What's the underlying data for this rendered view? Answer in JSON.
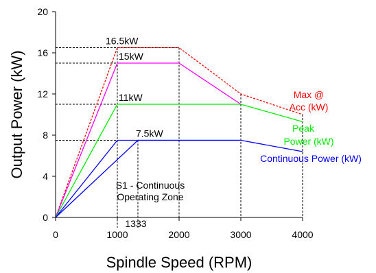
{
  "chart_data": {
    "type": "line",
    "xlabel": "Spindle Speed (RPM)",
    "ylabel": "Output Power (kW)",
    "xlim": [
      0,
      4000
    ],
    "ylim": [
      0,
      20
    ],
    "xticks": [
      "0",
      "1000",
      "2000",
      "3000",
      "4000"
    ],
    "yticks": [
      "0",
      "4",
      "8",
      "12",
      "16",
      "20"
    ],
    "grid": false,
    "series": [
      {
        "name": "Max @ Acc (kW)",
        "color": "#ff0000",
        "dashed": true,
        "x": [
          0,
          1000,
          2000,
          3000,
          4000
        ],
        "y": [
          0,
          16.5,
          16.5,
          12,
          10
        ]
      },
      {
        "name": "",
        "color": "#ff00ff",
        "dashed": false,
        "x": [
          0,
          1000,
          2000,
          3000
        ],
        "y": [
          0,
          15,
          15,
          11
        ]
      },
      {
        "name": "Peak Power (kW)",
        "color": "#00ee00",
        "dashed": false,
        "x": [
          0,
          1000,
          3000,
          4000
        ],
        "y": [
          0,
          11,
          11,
          9.3
        ]
      },
      {
        "name": "Continuous Power (kW)",
        "color": "#0000ff",
        "dashed": false,
        "x": [
          0,
          1000,
          3000,
          4000
        ],
        "y": [
          0,
          7.5,
          7.5,
          6.4
        ]
      },
      {
        "name": "",
        "color": "#0000ff",
        "dashed": false,
        "x": [
          0,
          1333,
          3000
        ],
        "y": [
          0,
          7.5,
          7.5
        ]
      }
    ],
    "annotations": {
      "v165": "16.5kW",
      "v15": "15kW",
      "v11": "11kW",
      "v75": "7.5kW",
      "zone_line1": "S1 - Continuous",
      "zone_line2": "Operating Zone",
      "x1333": "1333",
      "max_line1": "Max @",
      "max_line2": "Acc (kW)",
      "peak_line1": "Peak",
      "peak_line2": "Power (kW)",
      "continuous": "Continuous Power (kW)"
    }
  }
}
